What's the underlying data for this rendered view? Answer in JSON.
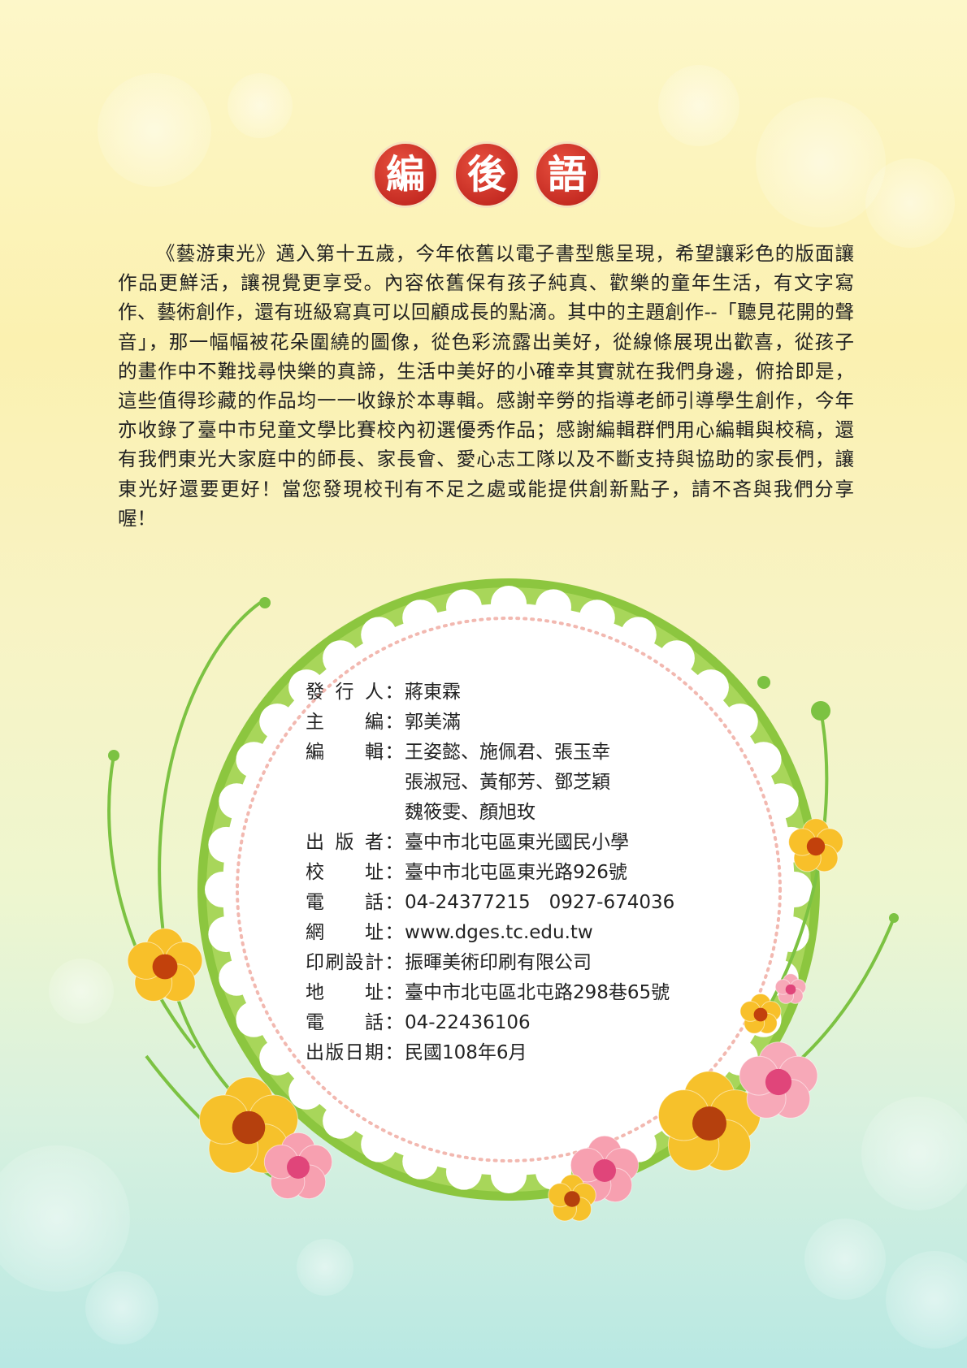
{
  "title": [
    "編",
    "後",
    "語"
  ],
  "paragraph_lines": [
    "《藝游東光》邁入第十五歲，今年依舊以電子書型態呈現，希望讓彩色的版面讓",
    "作品更鮮活，讓視覺更享受。內容依舊保有孩子純真、歡樂的童年生活，有文字寫",
    "作、藝術創作，還有班級寫真可以回顧成長的點滴。其中的主題創作--「聽見花開的聲",
    "音」，那一幅幅被花朵圍繞的圖像，從色彩流露出美好，從線條展現出歡喜，從孩子",
    "的畫作中不難找尋快樂的真諦，生活中美好的小確幸其實就在我們身邊，俯拾即是，",
    "這些值得珍藏的作品均一一收錄於本專輯。感謝辛勞的指導老師引導學生創作，今年",
    "亦收錄了臺中市兒童文學比賽校內初選優秀作品；感謝編輯群們用心編輯與校稿，還",
    "有我們東光大家庭中的師長、家長會、愛心志工隊以及不斷支持與協助的家長們，讓",
    "東光好還要更好！當您發現校刊有不足之處或能提供創新點子，請不吝與我們分享",
    "喔！"
  ],
  "separator": "：",
  "credits": [
    {
      "label": "發行人",
      "value": [
        "蔣東霖"
      ]
    },
    {
      "label": "主編",
      "value": [
        "郭美滿"
      ]
    },
    {
      "label": "編輯",
      "value": [
        "王姿懿、施佩君、張玉幸",
        "張淑冠、黃郁芳、鄧芝穎",
        "魏筱雯、顏旭玫"
      ]
    },
    {
      "label": "出版者",
      "value": [
        "臺中市北屯區東光國民小學"
      ]
    },
    {
      "label": "校址",
      "value": [
        "臺中市北屯區東光路926號"
      ]
    },
    {
      "label": "電話",
      "value": [
        "04-24377215　0927-674036"
      ]
    },
    {
      "label": "網址",
      "value": [
        "www.dges.tc.edu.tw"
      ]
    },
    {
      "label": "印刷設計",
      "value": [
        "振暉美術印刷有限公司"
      ]
    },
    {
      "label": "地址",
      "value": [
        "臺中市北屯區北屯路298巷65號"
      ]
    },
    {
      "label": "電話",
      "value": [
        "04-22436106"
      ]
    },
    {
      "label": "出版日期",
      "value": [
        "民國108年6月"
      ]
    }
  ]
}
